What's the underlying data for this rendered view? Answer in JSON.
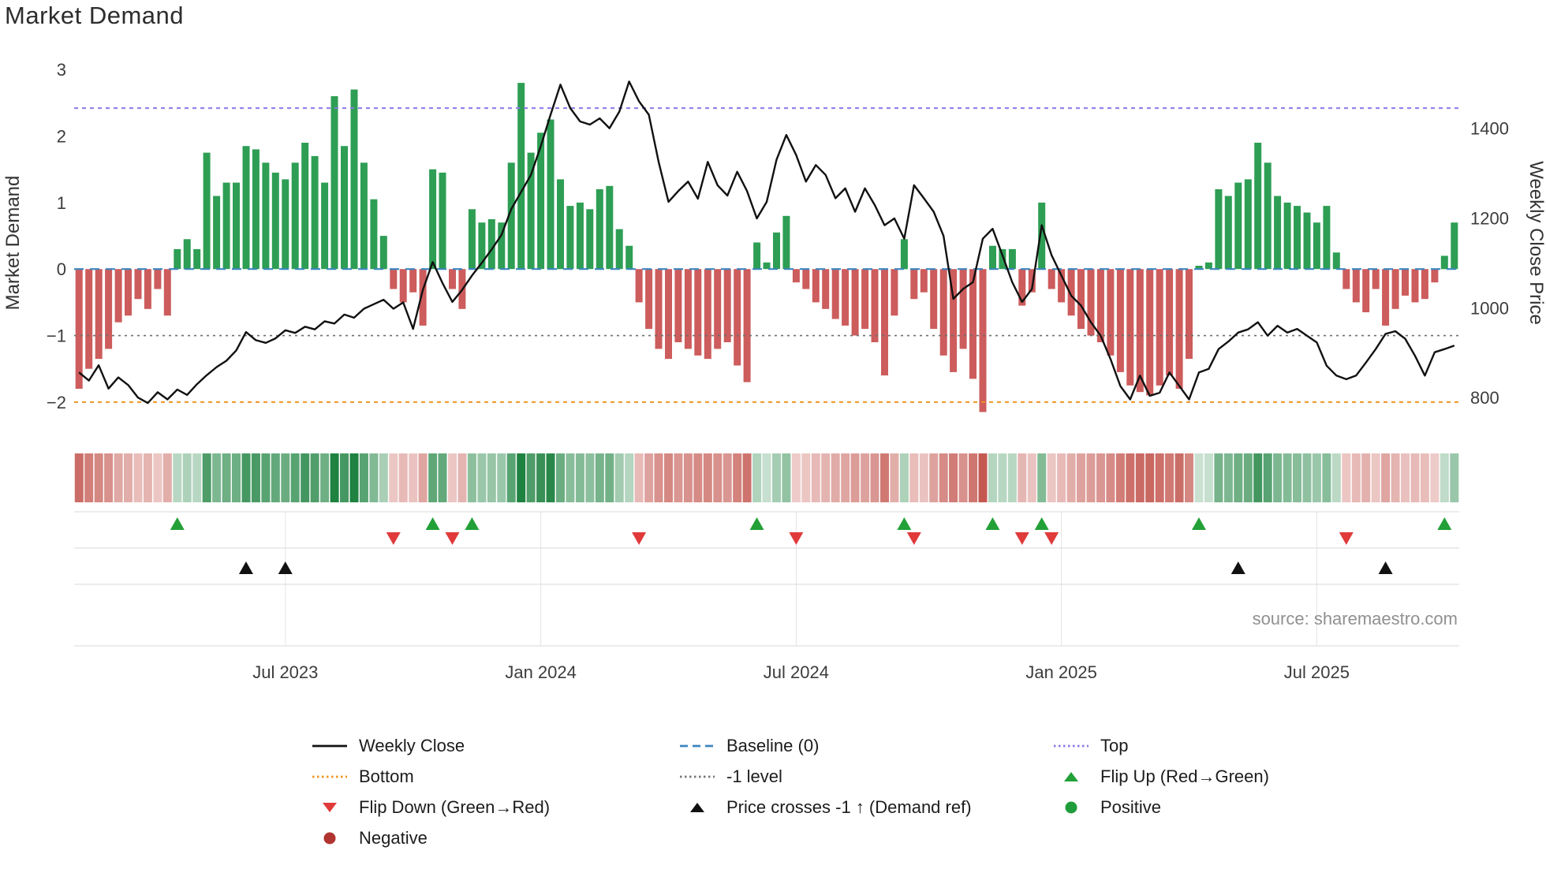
{
  "title": "Market Demand",
  "source": "source: sharemaestro.com",
  "axes": {
    "left_label": "Market Demand",
    "right_label": "Weekly Close Price",
    "left_ticks": [
      3,
      2,
      1,
      0,
      -1,
      -2
    ],
    "right_ticks": [
      1400,
      1200,
      1000,
      800
    ],
    "x_ticks": [
      {
        "label": "Jul 2023",
        "index": 21
      },
      {
        "label": "Jan 2024",
        "index": 47
      },
      {
        "label": "Jul 2024",
        "index": 73
      },
      {
        "label": "Jan 2025",
        "index": 100
      },
      {
        "label": "Jul 2025",
        "index": 126
      }
    ]
  },
  "chart_data": {
    "type": "bar+line",
    "title": "Market Demand",
    "start_date": "2023-02-06",
    "frequency": "weekly",
    "ylim_left": [
      -2.25,
      3.05
    ],
    "ylim_right": [
      753,
      1538
    ],
    "levels": {
      "baseline": 0,
      "minus_one": -1,
      "top": 2.42,
      "bottom": -2.0
    },
    "series": [
      {
        "name": "Market Demand",
        "axis": "left",
        "type": "bar",
        "values": [
          -1.8,
          -1.5,
          -1.35,
          -1.2,
          -0.8,
          -0.7,
          -0.45,
          -0.6,
          -0.3,
          -0.7,
          0.3,
          0.45,
          0.3,
          1.75,
          1.1,
          1.3,
          1.3,
          1.85,
          1.8,
          1.6,
          1.45,
          1.35,
          1.6,
          1.9,
          1.7,
          1.3,
          2.6,
          1.85,
          2.7,
          1.6,
          1.05,
          0.5,
          -0.3,
          -0.5,
          -0.35,
          -0.85,
          1.5,
          1.45,
          -0.3,
          -0.6,
          0.9,
          0.7,
          0.75,
          0.7,
          1.6,
          2.8,
          1.75,
          2.05,
          2.25,
          1.35,
          0.95,
          1.0,
          0.9,
          1.2,
          1.25,
          0.6,
          0.35,
          -0.5,
          -0.9,
          -1.2,
          -1.35,
          -1.1,
          -1.2,
          -1.3,
          -1.35,
          -1.2,
          -1.1,
          -1.45,
          -1.7,
          0.4,
          0.1,
          0.55,
          0.8,
          -0.2,
          -0.3,
          -0.5,
          -0.6,
          -0.75,
          -0.85,
          -1.0,
          -0.9,
          -1.1,
          -1.6,
          -0.7,
          0.45,
          -0.45,
          -0.35,
          -0.9,
          -1.3,
          -1.55,
          -1.2,
          -1.65,
          -2.15,
          0.35,
          0.3,
          0.3,
          -0.55,
          -0.35,
          1.0,
          -0.3,
          -0.5,
          -0.7,
          -0.9,
          -1.0,
          -1.1,
          -1.3,
          -1.55,
          -1.75,
          -1.85,
          -1.9,
          -1.75,
          -1.6,
          -1.8,
          -1.35,
          0.05,
          0.1,
          1.2,
          1.1,
          1.3,
          1.35,
          1.9,
          1.6,
          1.1,
          1.0,
          0.95,
          0.85,
          0.7,
          0.95,
          0.25,
          -0.3,
          -0.5,
          -0.65,
          -0.3,
          -0.85,
          -0.6,
          -0.4,
          -0.5,
          -0.45,
          -0.2,
          0.2,
          0.7
        ]
      },
      {
        "name": "Weekly Close",
        "axis": "right",
        "type": "line",
        "values": [
          856,
          838,
          872,
          820,
          845,
          828,
          800,
          788,
          812,
          796,
          818,
          806,
          830,
          850,
          868,
          882,
          905,
          946,
          928,
          922,
          932,
          950,
          944,
          958,
          952,
          970,
          965,
          985,
          978,
          998,
          1008,
          1018,
          998,
          1012,
          953,
          1040,
          1102,
          1055,
          1013,
          1040,
          1072,
          1100,
          1130,
          1162,
          1220,
          1258,
          1296,
          1360,
          1430,
          1497,
          1445,
          1415,
          1408,
          1422,
          1400,
          1437,
          1504,
          1460,
          1430,
          1325,
          1236,
          1260,
          1281,
          1243,
          1325,
          1273,
          1250,
          1303,
          1260,
          1199,
          1236,
          1330,
          1385,
          1340,
          1281,
          1318,
          1296,
          1244,
          1266,
          1214,
          1266,
          1229,
          1184,
          1199,
          1154,
          1273,
          1244,
          1214,
          1160,
          1020,
          1042,
          1057,
          1154,
          1176,
          1117,
          1057,
          1013,
          1042,
          1184,
          1117,
          1072,
          1027,
          1005,
          968,
          938,
          886,
          826,
          796,
          849,
          804,
          811,
          856,
          826,
          796,
          856,
          864,
          908,
          925,
          945,
          952,
          968,
          938,
          960,
          945,
          953,
          938,
          923,
          871,
          849,
          841,
          849,
          878,
          908,
          942,
          948,
          931,
          893,
          849,
          901,
          908,
          916
        ]
      }
    ],
    "events": {
      "flip_up_indices": [
        10,
        36,
        40,
        69,
        84,
        93,
        98,
        114,
        139
      ],
      "flip_down_indices": [
        32,
        38,
        57,
        73,
        85,
        96,
        99,
        129
      ],
      "price_cross_up_indices": [
        17,
        21,
        118,
        133
      ]
    }
  },
  "legend": [
    {
      "id": "weekly_close",
      "label": "Weekly Close",
      "icon": "line",
      "color": "#111111"
    },
    {
      "id": "baseline",
      "label": "Baseline (0)",
      "icon": "line",
      "color": "#3c86c0"
    },
    {
      "id": "top",
      "label": "Top",
      "icon": "line",
      "color": "#8979e8"
    },
    {
      "id": "bottom",
      "label": "Bottom",
      "icon": "line",
      "color": "#f0941f"
    },
    {
      "id": "minus_one",
      "label": "-1 level",
      "icon": "line",
      "color": "#777777"
    },
    {
      "id": "flip_up",
      "label": "Flip Up (Red→Green)",
      "icon": "triangle-up",
      "color": "#23a037"
    },
    {
      "id": "flip_down",
      "label": "Flip Down (Green→Red)",
      "icon": "triangle-down",
      "color": "#e03a3a"
    },
    {
      "id": "price_cross",
      "label": "Price crosses -1 ↑ (Demand ref)",
      "icon": "triangle-up",
      "color": "#111111"
    },
    {
      "id": "positive",
      "label": "Positive",
      "icon": "circle",
      "color": "#1f9d3a"
    },
    {
      "id": "negative",
      "label": "Negative",
      "icon": "circle",
      "color": "#b03430"
    }
  ],
  "colors": {
    "bar_positive": "#2e9e54",
    "bar_negative": "#cd5c5c",
    "price_line": "#111111",
    "baseline": "#3c86c0",
    "top": "#8979e8",
    "bottom": "#f0941f",
    "minus_one": "#6e6e6e",
    "flip_up": "#23a037",
    "flip_down": "#e03a3a",
    "price_cross": "#111111",
    "heat_pos": "#1e8240",
    "heat_neg": "#bf4a42",
    "grid": "#e4e4e4",
    "row_line": "#d9d9d9"
  }
}
